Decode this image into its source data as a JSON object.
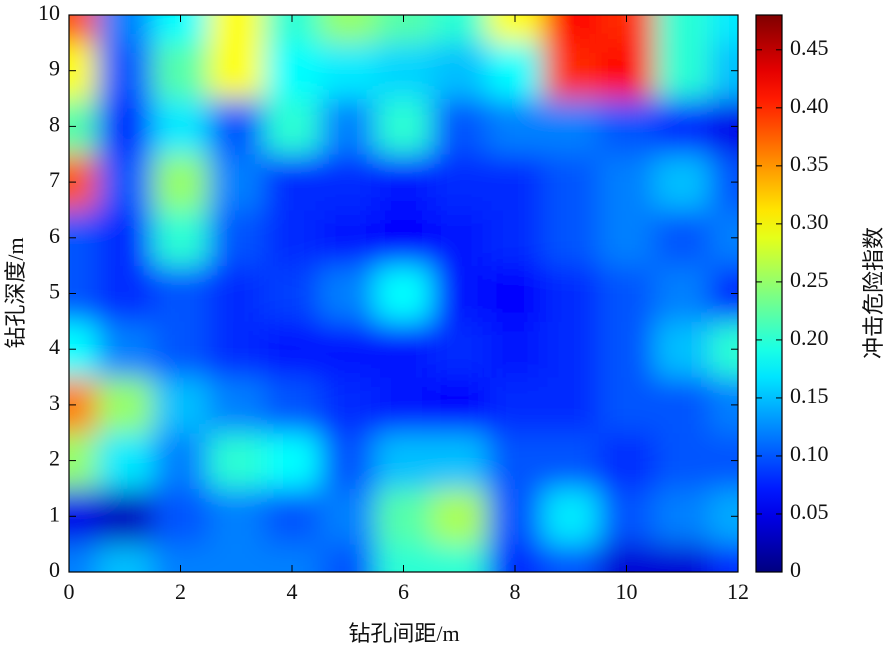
{
  "chart_data": {
    "type": "contour",
    "xlabel": "钻孔间距/m",
    "ylabel": "钻孔深度/m",
    "x": [
      0,
      1,
      2,
      3,
      4,
      5,
      6,
      7,
      8,
      9,
      10,
      11,
      12
    ],
    "y": [
      0,
      1,
      2,
      3,
      4,
      5,
      6,
      7,
      8,
      9,
      10
    ],
    "z": [
      [
        0.12,
        0.15,
        0.12,
        0.12,
        0.12,
        0.1,
        0.2,
        0.2,
        0.08,
        0.1,
        0.04,
        0.04,
        0.08
      ],
      [
        0.05,
        0.03,
        0.1,
        0.12,
        0.1,
        0.12,
        0.22,
        0.26,
        0.1,
        0.17,
        0.1,
        0.12,
        0.14
      ],
      [
        0.25,
        0.17,
        0.12,
        0.2,
        0.18,
        0.1,
        0.15,
        0.15,
        0.1,
        0.1,
        0.08,
        0.1,
        0.1
      ],
      [
        0.36,
        0.25,
        0.15,
        0.12,
        0.1,
        0.08,
        0.07,
        0.06,
        0.08,
        0.08,
        0.1,
        0.1,
        0.12
      ],
      [
        0.18,
        0.12,
        0.1,
        0.08,
        0.07,
        0.07,
        0.07,
        0.08,
        0.07,
        0.08,
        0.1,
        0.15,
        0.2
      ],
      [
        0.1,
        0.08,
        0.1,
        0.08,
        0.09,
        0.12,
        0.18,
        0.07,
        0.06,
        0.08,
        0.1,
        0.12,
        0.08
      ],
      [
        0.1,
        0.08,
        0.2,
        0.1,
        0.08,
        0.07,
        0.06,
        0.07,
        0.08,
        0.1,
        0.12,
        0.1,
        0.12
      ],
      [
        0.38,
        0.1,
        0.25,
        0.12,
        0.08,
        0.08,
        0.07,
        0.08,
        0.08,
        0.1,
        0.12,
        0.15,
        0.1
      ],
      [
        0.22,
        0.08,
        0.17,
        0.1,
        0.2,
        0.12,
        0.2,
        0.1,
        0.12,
        0.12,
        0.1,
        0.08,
        0.05
      ],
      [
        0.3,
        0.1,
        0.22,
        0.3,
        0.18,
        0.17,
        0.16,
        0.15,
        0.18,
        0.4,
        0.42,
        0.2,
        0.15
      ],
      [
        0.38,
        0.12,
        0.18,
        0.3,
        0.2,
        0.25,
        0.22,
        0.2,
        0.3,
        0.42,
        0.4,
        0.2,
        0.17
      ]
    ],
    "xlim": [
      0,
      12
    ],
    "xticks": [
      0,
      2,
      4,
      6,
      8,
      10,
      12
    ],
    "ylim": [
      0,
      10
    ],
    "yticks": [
      0,
      1,
      2,
      3,
      4,
      5,
      6,
      7,
      8,
      9,
      10
    ],
    "colormap": "jet",
    "colorbar": {
      "label": "冲击危险指数",
      "lim": [
        0,
        0.48
      ],
      "ticks": [
        0,
        0.05,
        {
          "value": 0.1,
          "label": "0.10"
        },
        0.15,
        {
          "value": 0.2,
          "label": "0.20"
        },
        0.25,
        {
          "value": 0.3,
          "label": "0.30"
        },
        0.35,
        {
          "value": 0.4,
          "label": "0.40"
        },
        0.45
      ]
    }
  }
}
